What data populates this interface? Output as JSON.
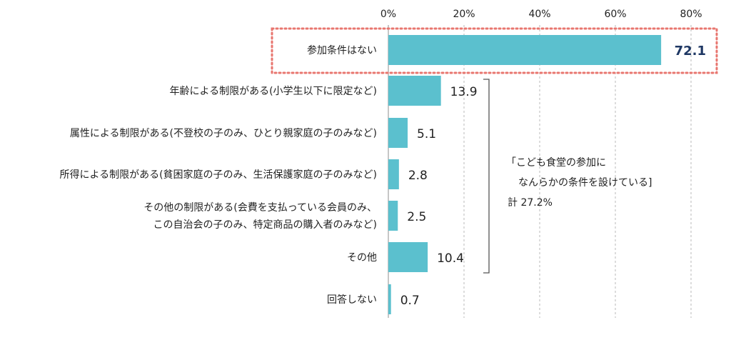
{
  "chart_data": {
    "type": "bar",
    "orientation": "horizontal",
    "xlim": [
      0,
      80
    ],
    "ticks": [
      0,
      20,
      40,
      60,
      80
    ],
    "tick_labels": [
      "0%",
      "20%",
      "40%",
      "60%",
      "80%"
    ],
    "grid": true,
    "categories": [
      [
        "参加条件はない"
      ],
      [
        "年齢による制限がある(小学生以下に限定など)"
      ],
      [
        "属性による制限がある(不登校の子のみ、ひとり親家庭の子のみなど)"
      ],
      [
        "所得による制限がある(貧困家庭の子のみ、生活保護家庭の子のみなど)"
      ],
      [
        "その他の制限がある(会費を支払っている会員のみ、",
        "この自治会の子のみ、特定商品の購入者のみなど)"
      ],
      [
        "その他"
      ],
      [
        "回答しない"
      ]
    ],
    "values": [
      72.1,
      13.9,
      5.1,
      2.8,
      2.5,
      10.4,
      0.7
    ],
    "value_labels": [
      "72.1",
      "13.9",
      "5.1",
      "2.8",
      "2.5",
      "10.4",
      "0.7"
    ],
    "highlight_index": 0,
    "bar_color": "#5bc0ce",
    "highlight_box_color": "#e8766f",
    "highlight_label_color": "#1f3864",
    "bracket": {
      "from_index": 1,
      "to_index": 5,
      "note_lines": [
        "「こども食堂の参加に",
        "なんらかの条件を設けている]",
        "計  27.2%"
      ]
    }
  }
}
